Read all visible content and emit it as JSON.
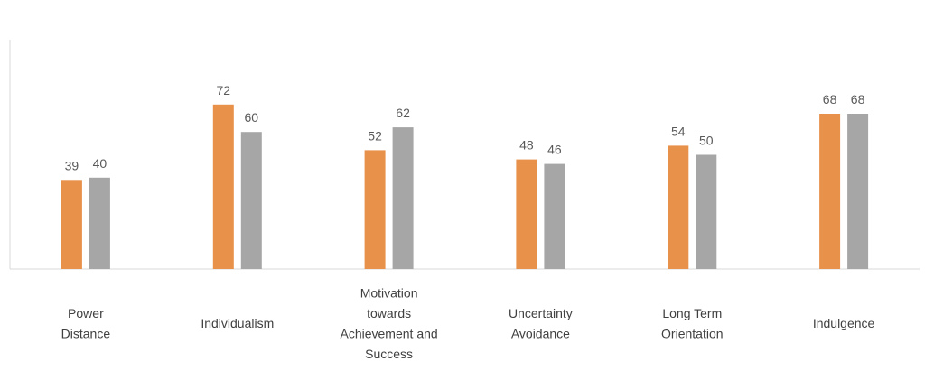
{
  "chart_data": {
    "type": "bar",
    "categories": [
      [
        "Power",
        "Distance"
      ],
      [
        "Individualism"
      ],
      [
        "Motivation",
        "towards",
        "Achievement and",
        "Success"
      ],
      [
        "Uncertainty",
        "Avoidance"
      ],
      [
        "Long Term",
        "Orientation"
      ],
      [
        "Indulgence"
      ]
    ],
    "series": [
      {
        "values": [
          39,
          72,
          52,
          48,
          54,
          68
        ],
        "color": "#E8914A"
      },
      {
        "values": [
          40,
          60,
          62,
          46,
          50,
          68
        ],
        "color": "#A6A6A6"
      }
    ],
    "ylim": [
      0,
      100
    ],
    "grid": false,
    "data_labels": true,
    "legend": "none"
  }
}
